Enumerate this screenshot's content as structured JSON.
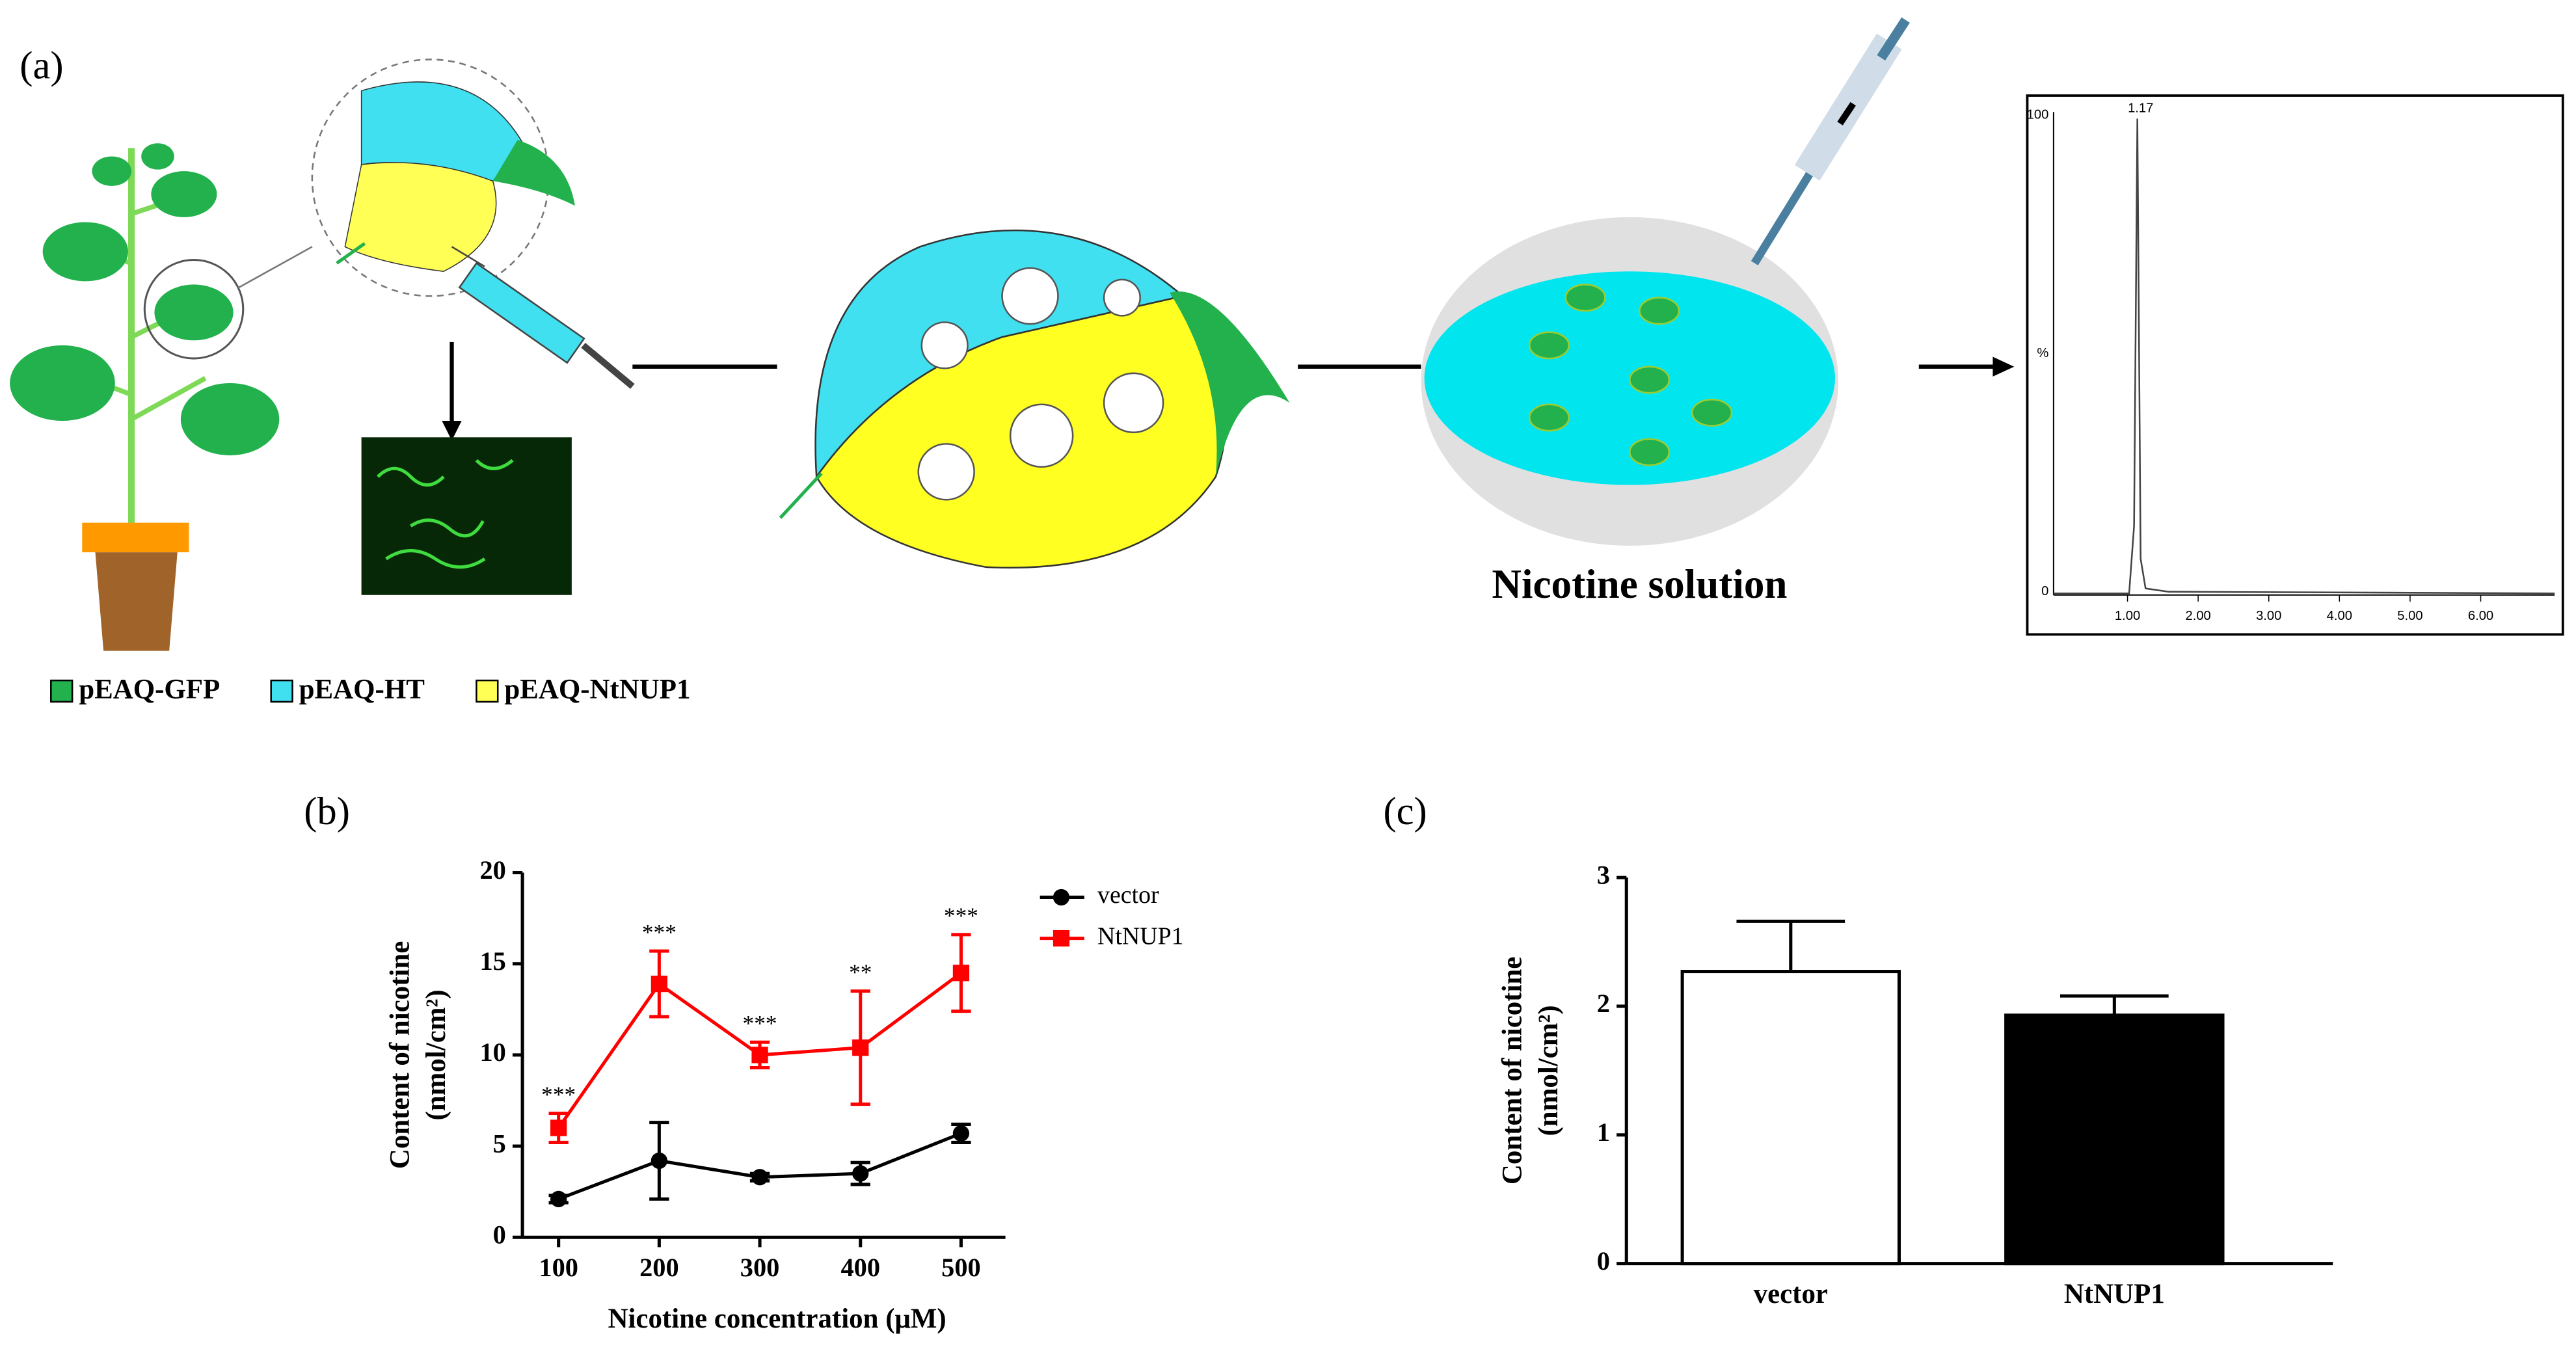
{
  "panels": {
    "a": "(a)",
    "b": "(b)",
    "c": "(c)"
  },
  "diagram": {
    "legend": [
      "pEAQ-GFP",
      "pEAQ-HT",
      "pEAQ-NtNUP1"
    ],
    "dish_label": "Nicotine solution",
    "chromatogram": {
      "peak_label": "1.17",
      "y_labels": [
        "100",
        "%",
        "0"
      ],
      "x_labels": [
        "1.00",
        "2.00",
        "3.00",
        "4.00",
        "5.00",
        "6.00"
      ]
    }
  },
  "chart_data": [
    {
      "type": "line",
      "ylabel": [
        "Content of nicotine",
        "(nmol/cm²)"
      ],
      "xlabel": "Nicotine concentration (μM)",
      "categories": [
        "100",
        "200",
        "300",
        "400",
        "500"
      ],
      "series": [
        {
          "name": "vector",
          "color": "#000000",
          "marker": "circle",
          "values": [
            2.1,
            4.2,
            3.3,
            3.5,
            5.7
          ],
          "errors": [
            0.2,
            2.1,
            0.2,
            0.6,
            0.5
          ]
        },
        {
          "name": "NtNUP1",
          "color": "#ff0000",
          "marker": "square",
          "values": [
            6.0,
            13.9,
            10.0,
            10.4,
            14.5
          ],
          "errors": [
            0.8,
            1.8,
            0.7,
            3.1,
            2.1
          ],
          "annotations": [
            "***",
            "***",
            "***",
            "**",
            "***"
          ]
        }
      ],
      "ylim": [
        0,
        20
      ],
      "yticks": [
        0,
        5,
        10,
        15,
        20
      ],
      "legend": "upper right"
    },
    {
      "type": "bar",
      "ylabel": [
        "Content of nicotine",
        "(nmol/cm²)"
      ],
      "categories": [
        "vector",
        "NtNUP1"
      ],
      "values": [
        2.27,
        1.93
      ],
      "errors": [
        0.39,
        0.15
      ],
      "colors": [
        "#ffffff",
        "#000000"
      ],
      "ylim": [
        0,
        3
      ],
      "yticks": [
        0,
        1,
        2,
        3
      ]
    }
  ]
}
